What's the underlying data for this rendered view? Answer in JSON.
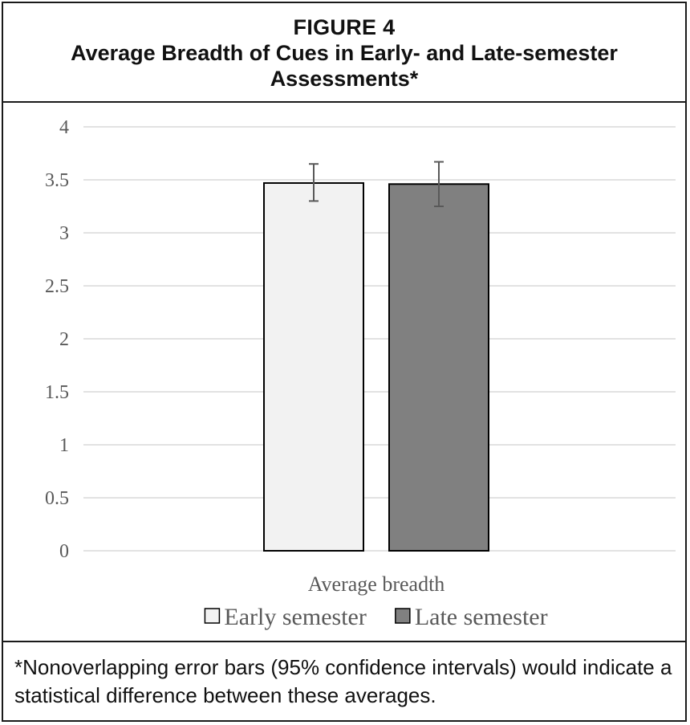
{
  "figure": {
    "label": "FIGURE 4",
    "title": "Average Breadth of Cues in Early- and Late-semester Assessments*"
  },
  "footnote": "*Nonoverlapping error bars (95% confidence intervals) would indicate a statistical difference between these averages.",
  "colors": {
    "early_fill": "#f2f2f2",
    "late_fill": "#808080",
    "bar_stroke": "#000000",
    "grid": "#d9d9d9",
    "error_bar": "#595959",
    "axis_text": "#595959"
  },
  "chart_data": {
    "type": "bar",
    "categories": [
      "Average breadth"
    ],
    "series": [
      {
        "name": "Early semester",
        "values": [
          3.47
        ],
        "ci_low": [
          3.3
        ],
        "ci_high": [
          3.65
        ]
      },
      {
        "name": "Late semester",
        "values": [
          3.46
        ],
        "ci_low": [
          3.25
        ],
        "ci_high": [
          3.67
        ]
      }
    ],
    "ylim": [
      0,
      4
    ],
    "yticks": [
      0,
      0.5,
      1,
      1.5,
      2,
      2.5,
      3,
      3.5,
      4
    ],
    "ytick_labels": [
      "0",
      "0.5",
      "1",
      "1.5",
      "2",
      "2.5",
      "3",
      "3.5",
      "4"
    ],
    "xlabel": "",
    "ylabel": "",
    "grid": true,
    "legend_position": "bottom"
  }
}
